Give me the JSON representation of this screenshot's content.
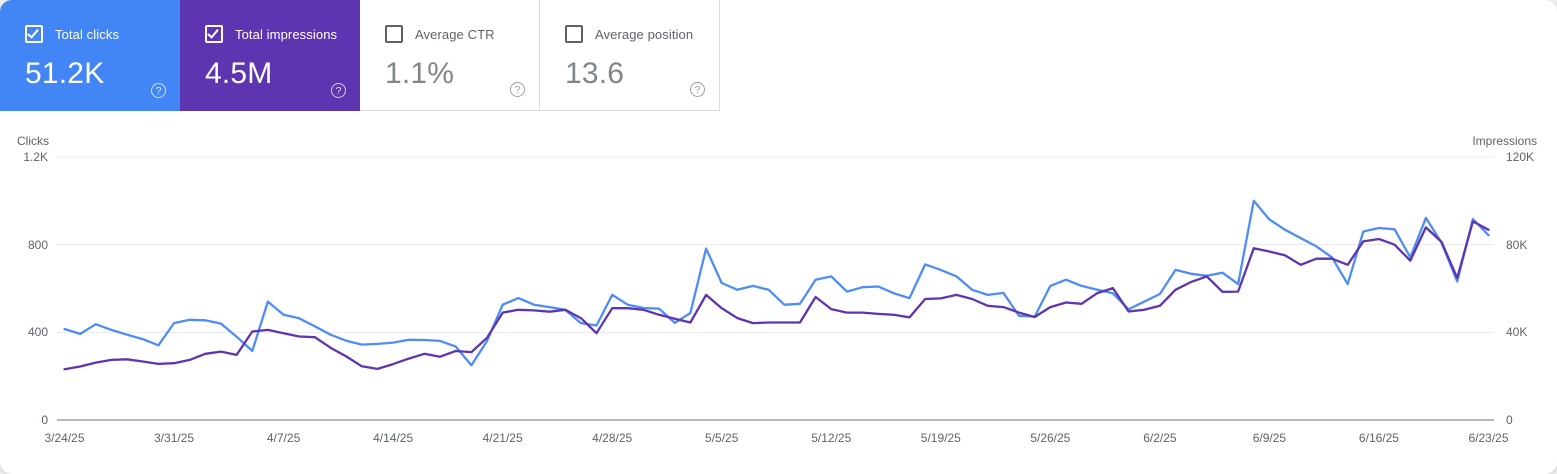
{
  "cards": [
    {
      "label": "Total clicks",
      "value": "51.2K",
      "selected": true,
      "color": "#4285f4"
    },
    {
      "label": "Total impressions",
      "value": "4.5M",
      "selected": true,
      "color": "#5e35b1"
    },
    {
      "label": "Average CTR",
      "value": "1.1%",
      "selected": false,
      "color": ""
    },
    {
      "label": "Average position",
      "value": "13.6",
      "selected": false,
      "color": ""
    }
  ],
  "chart_data": {
    "type": "line",
    "x": [
      "3/24/25",
      "3/25/25",
      "3/26/25",
      "3/27/25",
      "3/28/25",
      "3/29/25",
      "3/30/25",
      "3/31/25",
      "4/1/25",
      "4/2/25",
      "4/3/25",
      "4/4/25",
      "4/5/25",
      "4/6/25",
      "4/7/25",
      "4/8/25",
      "4/9/25",
      "4/10/25",
      "4/11/25",
      "4/12/25",
      "4/13/25",
      "4/14/25",
      "4/15/25",
      "4/16/25",
      "4/17/25",
      "4/18/25",
      "4/19/25",
      "4/20/25",
      "4/21/25",
      "4/22/25",
      "4/23/25",
      "4/24/25",
      "4/25/25",
      "4/26/25",
      "4/27/25",
      "4/28/25",
      "4/29/25",
      "4/30/25",
      "5/1/25",
      "5/2/25",
      "5/3/25",
      "5/4/25",
      "5/5/25",
      "5/6/25",
      "5/7/25",
      "5/8/25",
      "5/9/25",
      "5/10/25",
      "5/11/25",
      "5/12/25",
      "5/13/25",
      "5/14/25",
      "5/15/25",
      "5/16/25",
      "5/17/25",
      "5/18/25",
      "5/19/25",
      "5/20/25",
      "5/21/25",
      "5/22/25",
      "5/23/25",
      "5/24/25",
      "5/25/25",
      "5/26/25",
      "5/27/25",
      "5/28/25",
      "5/29/25",
      "5/30/25",
      "5/31/25",
      "6/1/25",
      "6/2/25",
      "6/3/25",
      "6/4/25",
      "6/5/25",
      "6/6/25",
      "6/7/25",
      "6/8/25",
      "6/9/25",
      "6/10/25",
      "6/11/25",
      "6/12/25",
      "6/13/25",
      "6/14/25",
      "6/15/25",
      "6/16/25",
      "6/17/25",
      "6/18/25",
      "6/19/25",
      "6/20/25",
      "6/21/25",
      "6/22/25",
      "6/23/25"
    ],
    "x_tick_every": 7,
    "grid": true,
    "legend_position": "none",
    "left_axis": {
      "label": "Clicks",
      "max": 1200,
      "ticks": [
        "1.2K",
        "800",
        "400",
        "0"
      ]
    },
    "right_axis": {
      "label": "Impressions",
      "max": 120000,
      "ticks": [
        "120K",
        "80K",
        "40K",
        "0"
      ]
    },
    "series": [
      {
        "name": "Total clicks",
        "axis": "left",
        "color": "#4e8df5",
        "values": [
          415,
          393,
          437,
          411,
          389,
          369,
          341,
          442,
          457,
          455,
          440,
          380,
          315,
          540,
          480,
          464,
          427,
          389,
          362,
          344,
          347,
          353,
          366,
          365,
          361,
          335,
          250,
          360,
          526,
          556,
          526,
          515,
          503,
          442,
          431,
          571,
          526,
          511,
          508,
          443,
          488,
          782,
          625,
          594,
          612,
          594,
          526,
          530,
          640,
          655,
          586,
          606,
          609,
          578,
          556,
          710,
          685,
          655,
          594,
          571,
          580,
          475,
          472,
          612,
          640,
          612,
          594,
          578,
          505,
          540,
          575,
          685,
          667,
          658,
          672,
          620,
          1000,
          915,
          868,
          830,
          792,
          742,
          620,
          860,
          876,
          870,
          742,
          922,
          808,
          632,
          917,
          843
        ]
      },
      {
        "name": "Total impressions",
        "axis": "right",
        "color": "#5e35b1",
        "values": [
          23200,
          24400,
          26200,
          27400,
          27700,
          26700,
          25600,
          25900,
          27400,
          30200,
          31200,
          29700,
          40400,
          41100,
          39600,
          38100,
          37800,
          33000,
          29000,
          24500,
          23300,
          25500,
          28000,
          30200,
          28900,
          31500,
          31000,
          37500,
          49000,
          50300,
          50000,
          49400,
          50300,
          46500,
          39600,
          51000,
          51000,
          50300,
          48000,
          46200,
          44500,
          57100,
          51000,
          46500,
          44200,
          44500,
          44500,
          44500,
          56100,
          50600,
          49000,
          49000,
          48400,
          48000,
          46800,
          55200,
          55500,
          57100,
          55200,
          52100,
          51500,
          49000,
          47000,
          51500,
          53600,
          53000,
          57900,
          60200,
          49500,
          50300,
          52100,
          59400,
          63000,
          65500,
          58500,
          58600,
          78400,
          76900,
          75100,
          70800,
          73600,
          73600,
          70800,
          81500,
          82600,
          80000,
          72700,
          87900,
          81200,
          64800,
          90600,
          86800
        ]
      }
    ]
  }
}
